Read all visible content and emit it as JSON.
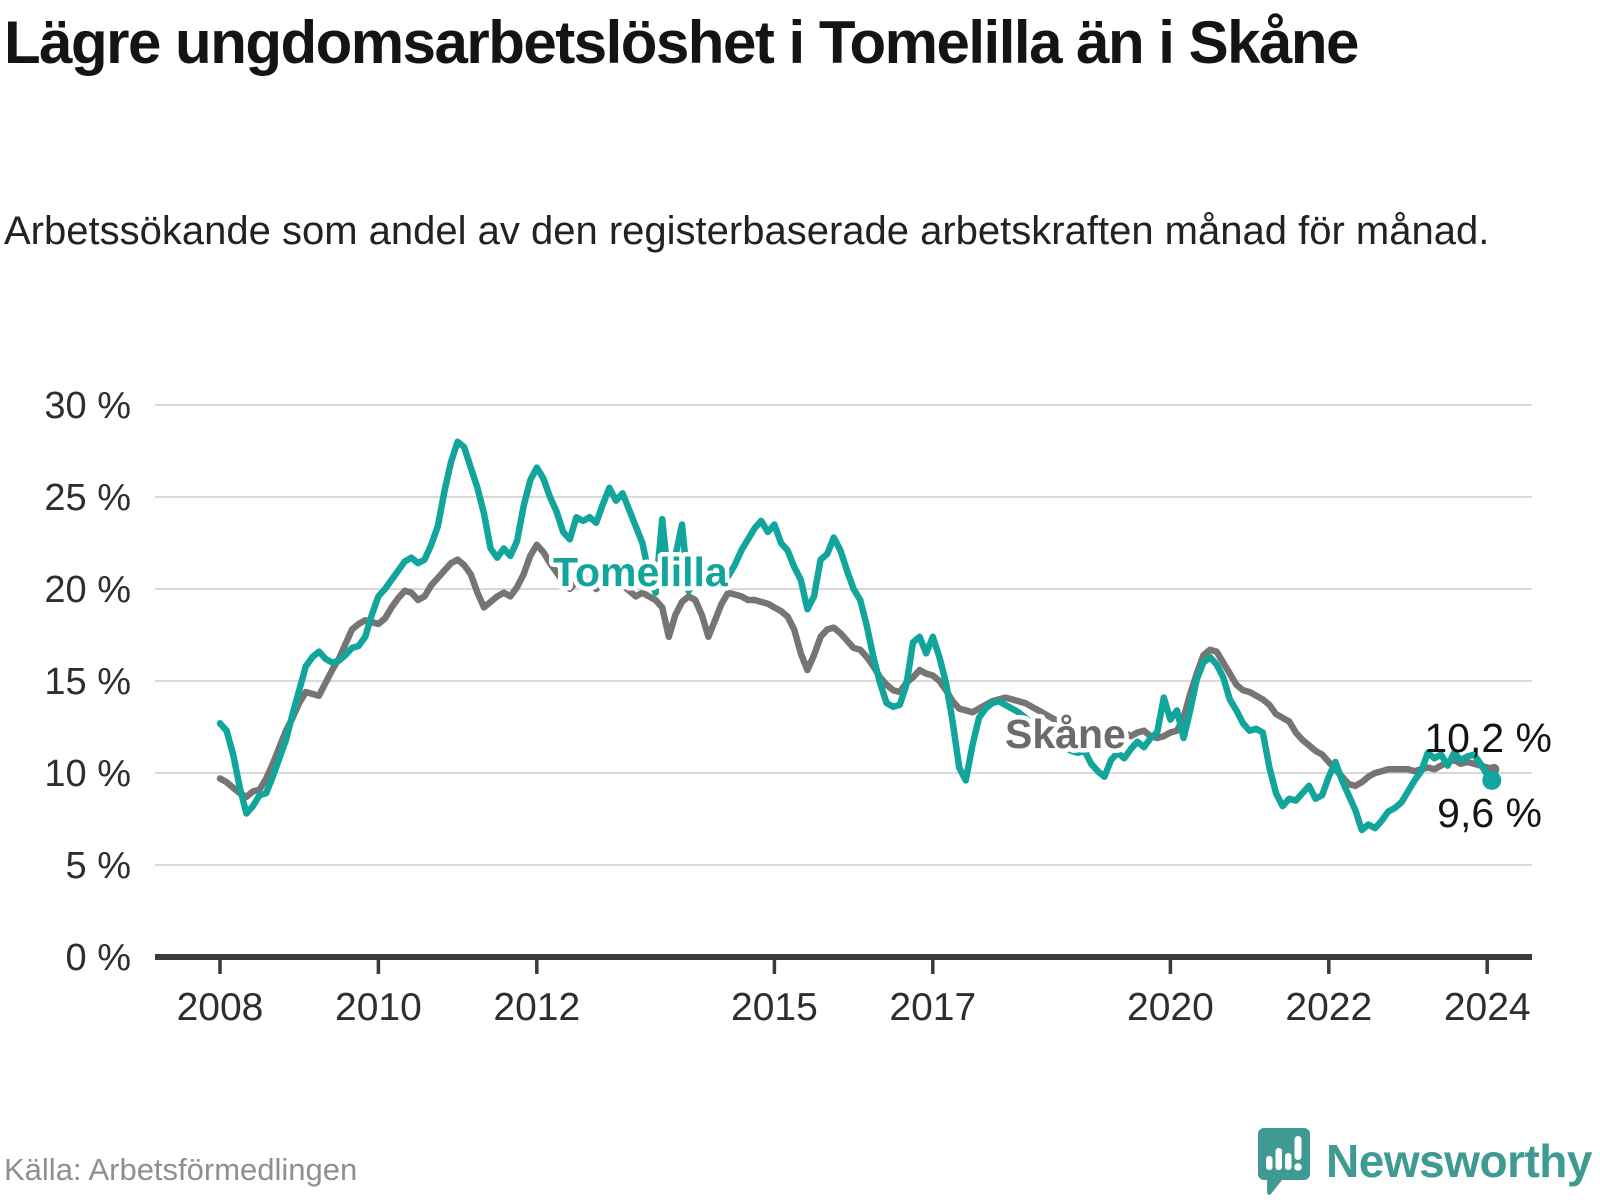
{
  "chart_data": {
    "type": "line",
    "title": "Lägre ungdomsarbetslöshet i Tomelilla än i Skåne",
    "subtitle": "Arbetssökande som andel av den registerbaserade arbetskraften månad för månad.",
    "x_start_month": "2008-01",
    "x_end_month": "2024-02",
    "x_tick_years": [
      2008,
      2010,
      2012,
      2015,
      2017,
      2020,
      2022,
      2024
    ],
    "x_tick_labels": [
      "2008",
      "2010",
      "2012",
      "2015",
      "2017",
      "2020",
      "2022",
      "2024"
    ],
    "y_ticks": [
      0,
      5,
      10,
      15,
      20,
      25,
      30
    ],
    "y_tick_labels": [
      "0 %",
      "5 %",
      "10 %",
      "15 %",
      "20 %",
      "25 %",
      "30 %"
    ],
    "ylim": [
      0,
      31
    ],
    "grid": "horizontal-only",
    "legend_position": "inline-labels-on-lines",
    "series": [
      {
        "name": "Skåne",
        "color": "#757575",
        "label_color": "#6b6b6b",
        "end_value_label": "10,2 %",
        "end_value": 10.2,
        "values": [
          9.7,
          9.5,
          9.2,
          8.9,
          8.7,
          9.0,
          9.1,
          9.7,
          10.5,
          11.4,
          12.3,
          13.0,
          13.8,
          14.4,
          14.3,
          14.2,
          14.9,
          15.6,
          16.2,
          17.0,
          17.8,
          18.1,
          18.3,
          18.2,
          18.1,
          18.4,
          19.0,
          19.5,
          19.9,
          19.8,
          19.4,
          19.6,
          20.2,
          20.6,
          21.0,
          21.4,
          21.6,
          21.3,
          20.8,
          19.8,
          19.0,
          19.3,
          19.6,
          19.8,
          19.6,
          20.1,
          20.8,
          21.8,
          22.4,
          22.0,
          21.4,
          20.9,
          20.4,
          20.0,
          20.4,
          20.7,
          20.3,
          20.0,
          20.4,
          20.8,
          20.5,
          20.2,
          19.9,
          19.6,
          19.8,
          19.6,
          19.4,
          19.0,
          17.4,
          18.6,
          19.3,
          19.6,
          19.4,
          18.6,
          17.4,
          18.3,
          19.2,
          19.8,
          19.7,
          19.6,
          19.4,
          19.4,
          19.3,
          19.2,
          19.0,
          18.8,
          18.5,
          17.8,
          16.5,
          15.6,
          16.4,
          17.4,
          17.8,
          17.9,
          17.6,
          17.2,
          16.8,
          16.7,
          16.3,
          15.8,
          15.2,
          14.8,
          14.5,
          14.4,
          14.9,
          15.2,
          15.6,
          15.4,
          15.3,
          15.0,
          14.5,
          13.9,
          13.5,
          13.4,
          13.3,
          13.5,
          13.7,
          13.9,
          14.0,
          14.1,
          14.0,
          13.9,
          13.8,
          13.6,
          13.4,
          13.2,
          13.0,
          12.8,
          12.6,
          12.4,
          12.3,
          12.2,
          12.2,
          12.1,
          12.0,
          12.1,
          12.3,
          12.2,
          12.0,
          12.2,
          12.3,
          12.0,
          11.9,
          12.0,
          12.2,
          12.3,
          13.0,
          14.3,
          15.4,
          16.4,
          16.7,
          16.6,
          16.0,
          15.4,
          14.8,
          14.5,
          14.4,
          14.2,
          14.0,
          13.7,
          13.2,
          13.0,
          12.8,
          12.2,
          11.8,
          11.5,
          11.2,
          11.0,
          10.6,
          10.2,
          9.8,
          9.4,
          9.3,
          9.5,
          9.8,
          10.0,
          10.1,
          10.2,
          10.2,
          10.2,
          10.2,
          10.1,
          10.2,
          10.3,
          10.2,
          10.4,
          10.6,
          10.7,
          10.5,
          10.6,
          10.5,
          10.4,
          10.3,
          10.2
        ]
      },
      {
        "name": "Tomelilla",
        "color": "#11a59b",
        "label_color": "#11a59b",
        "end_value_label": "9,6 %",
        "end_value": 9.6,
        "values": [
          12.7,
          12.3,
          11.0,
          9.2,
          7.8,
          8.2,
          8.8,
          8.9,
          9.8,
          10.8,
          11.8,
          13.2,
          14.5,
          15.8,
          16.3,
          16.6,
          16.2,
          16.0,
          16.1,
          16.4,
          16.8,
          16.9,
          17.4,
          18.6,
          19.6,
          20.0,
          20.5,
          21.0,
          21.5,
          21.7,
          21.4,
          21.6,
          22.4,
          23.4,
          25.3,
          26.9,
          28.0,
          27.7,
          26.6,
          25.5,
          24.1,
          22.2,
          21.7,
          22.2,
          21.8,
          22.6,
          24.5,
          25.9,
          26.6,
          26.0,
          25.0,
          24.2,
          23.1,
          22.7,
          23.9,
          23.7,
          23.9,
          23.6,
          24.6,
          25.5,
          24.8,
          25.2,
          24.3,
          23.4,
          22.5,
          20.8,
          19.8,
          23.8,
          20.3,
          21.8,
          23.5,
          19.9,
          20.4,
          21.0,
          20.5,
          20.1,
          21.1,
          20.7,
          21.3,
          22.1,
          22.7,
          23.3,
          23.7,
          23.1,
          23.5,
          22.5,
          22.1,
          21.2,
          20.5,
          18.9,
          19.6,
          21.6,
          21.9,
          22.8,
          22.1,
          21.0,
          20.0,
          19.4,
          18.0,
          16.3,
          14.9,
          13.8,
          13.6,
          13.7,
          14.8,
          17.1,
          17.4,
          16.5,
          17.4,
          16.3,
          14.9,
          12.8,
          10.3,
          9.6,
          11.5,
          13.0,
          13.5,
          13.8,
          13.9,
          13.7,
          13.5,
          13.3,
          13.0,
          12.7,
          12.4,
          12.1,
          11.9,
          11.6,
          11.4,
          11.2,
          11.1,
          11.2,
          10.5,
          10.1,
          9.8,
          10.7,
          11.1,
          10.8,
          11.3,
          11.7,
          11.4,
          11.9,
          12.2,
          14.1,
          12.9,
          13.4,
          11.9,
          13.4,
          15.1,
          16.0,
          16.3,
          15.9,
          15.2,
          14.0,
          13.4,
          12.7,
          12.3,
          12.4,
          12.2,
          10.3,
          8.9,
          8.2,
          8.6,
          8.5,
          8.9,
          9.3,
          8.6,
          8.8,
          9.8,
          10.6,
          9.6,
          8.8,
          8.0,
          6.9,
          7.2,
          7.0,
          7.4,
          7.9,
          8.1,
          8.4,
          9.0,
          9.6,
          10.1,
          11.1,
          10.8,
          11.0,
          10.4,
          11.1,
          10.7,
          10.9,
          11.0,
          10.5,
          9.9,
          9.6
        ]
      }
    ],
    "annotations": [
      {
        "text": "Tomelilla",
        "series": "Tomelilla"
      },
      {
        "text": "Skåne",
        "series": "Skåne"
      }
    ]
  },
  "colors": {
    "accent_teal": "#11a59b",
    "line_gray": "#757575",
    "gridline": "#d9d9d9",
    "axis": "#3a3a3a",
    "text_dark": "#141414",
    "brand_teal": "#3e9a92",
    "source_gray": "#8f8f8f"
  },
  "footer": {
    "source": "Källa: Arbetsförmedlingen",
    "brand": "Newsworthy"
  }
}
